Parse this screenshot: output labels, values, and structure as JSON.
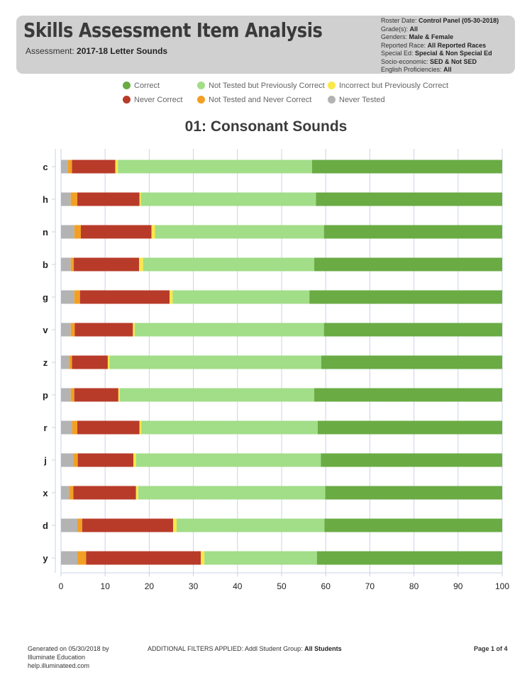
{
  "header": {
    "title": "Skills Assessment Item Analysis",
    "assessment_label": "Assessment:",
    "assessment_value": "2017-18 Letter Sounds",
    "meta": [
      {
        "label": "Roster Date:",
        "value": "Control Panel (05-30-2018)"
      },
      {
        "label": "Grade(s):",
        "value": "All"
      },
      {
        "label": "Genders:",
        "value": "Male & Female"
      },
      {
        "label": "Reported Race:",
        "value": "All Reported Races"
      },
      {
        "label": "Special Ed:",
        "value": "Special & Non Special Ed"
      },
      {
        "label": "Socio-economic:",
        "value": "SED & Not SED"
      },
      {
        "label": "English Proficiencies:",
        "value": "All"
      }
    ]
  },
  "legend": [
    {
      "label": "Correct",
      "color": "#6aab44"
    },
    {
      "label": "Not Tested but Previously Correct",
      "color": "#a2dd88"
    },
    {
      "label": "Incorrect but Previously Correct",
      "color": "#fbe84a"
    },
    {
      "label": "Never Correct",
      "color": "#b83b2a"
    },
    {
      "label": "Not Tested and Never Correct",
      "color": "#f2a025"
    },
    {
      "label": "Never Tested",
      "color": "#b3b3b3"
    }
  ],
  "chart_data": {
    "type": "bar",
    "orientation": "horizontal",
    "stacked": true,
    "title": "01: Consonant Sounds",
    "categories": [
      "c",
      "h",
      "n",
      "b",
      "g",
      "v",
      "z",
      "p",
      "r",
      "j",
      "x",
      "d",
      "y"
    ],
    "xlim": [
      0,
      100
    ],
    "xticks": [
      0,
      10,
      20,
      30,
      40,
      50,
      60,
      70,
      80,
      90,
      100
    ],
    "grid": true,
    "series": [
      {
        "name": "Never Tested",
        "color": "#b3b3b3",
        "values": [
          1.5,
          2.2,
          3.0,
          2.2,
          3.0,
          2.2,
          1.8,
          2.2,
          2.5,
          2.8,
          1.8,
          3.7,
          3.7
        ]
      },
      {
        "name": "Not Tested and Never Correct",
        "color": "#f2a025",
        "values": [
          1.0,
          1.5,
          1.5,
          0.7,
          1.3,
          0.9,
          0.7,
          0.8,
          1.2,
          1.0,
          1.0,
          1.1,
          2.0
        ]
      },
      {
        "name": "Never Correct",
        "color": "#b83b2a",
        "values": [
          9.8,
          14.1,
          16.0,
          14.8,
          20.3,
          13.2,
          8.1,
          10.0,
          14.1,
          12.6,
          14.2,
          20.6,
          26.0
        ]
      },
      {
        "name": "Incorrect but Previously Correct",
        "color": "#fbe84a",
        "values": [
          0.6,
          0.3,
          0.8,
          0.9,
          0.7,
          0.4,
          0.4,
          0.3,
          0.4,
          0.6,
          0.5,
          0.8,
          0.8
        ]
      },
      {
        "name": "Not Tested but Previously Correct",
        "color": "#a2dd88",
        "values": [
          44.0,
          39.7,
          38.3,
          38.8,
          31.0,
          42.9,
          48.0,
          44.1,
          40.0,
          41.9,
          42.4,
          33.5,
          25.5
        ]
      },
      {
        "name": "Correct",
        "color": "#6aab44",
        "values": [
          43.1,
          42.2,
          40.4,
          42.6,
          43.7,
          40.4,
          41.0,
          42.6,
          41.8,
          41.1,
          40.1,
          40.3,
          42.0
        ]
      }
    ]
  },
  "footer": {
    "generated": [
      "Generated on 05/30/2018 by",
      "Illuminate Education",
      "help.illuminateed.com"
    ],
    "filters_label": "ADDITIONAL FILTERS APPLIED:  Addl Student Group:",
    "filters_value": "All Students",
    "page": "Page 1 of 4"
  }
}
